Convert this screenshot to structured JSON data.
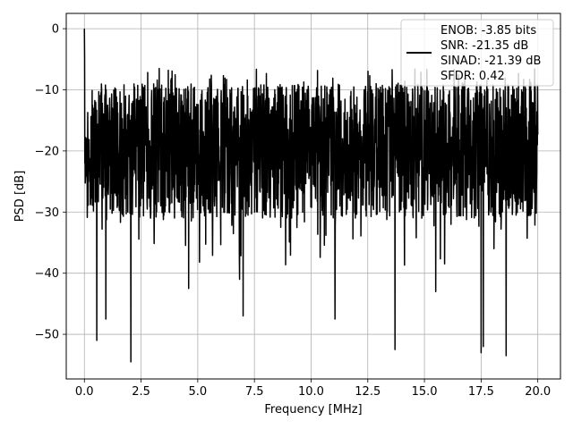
{
  "chart_data": {
    "type": "line",
    "title": "",
    "xlabel": "Frequency [MHz]",
    "ylabel": "PSD [dB]",
    "xlim": [
      -0.8,
      21.0
    ],
    "ylim": [
      -57.3,
      2.5
    ],
    "xticks": [
      0.0,
      2.5,
      5.0,
      7.5,
      10.0,
      12.5,
      15.0,
      17.5,
      20.0
    ],
    "xtick_labels": [
      "0.0",
      "2.5",
      "5.0",
      "7.5",
      "10.0",
      "12.5",
      "15.0",
      "17.5",
      "20.0"
    ],
    "yticks": [
      0,
      -10,
      -20,
      -30,
      -40,
      -50
    ],
    "ytick_labels": [
      "0",
      "−10",
      "−20",
      "−30",
      "−40",
      "−50"
    ],
    "grid": true,
    "legend_position": "top-right",
    "legend_lines": [
      "ENOB: -3.85 bits",
      "SNR: -21.35 dB",
      "SINAD: -21.39 dB",
      "SFDR: 0.42"
    ],
    "series": [
      {
        "color": "#000000",
        "x_range": [
          0.0,
          20.0
        ],
        "num_points": 2049,
        "peak": {
          "x": 0.0,
          "y": 0.0
        },
        "typical_upper_envelope": -10,
        "typical_lower_envelope": -30,
        "deep_notches": [
          {
            "x": 0.55,
            "y": -51
          },
          {
            "x": 0.95,
            "y": -47.5
          },
          {
            "x": 2.05,
            "y": -54.5
          },
          {
            "x": 4.6,
            "y": -42.5
          },
          {
            "x": 6.85,
            "y": -41
          },
          {
            "x": 7.0,
            "y": -47
          },
          {
            "x": 11.05,
            "y": -47.5
          },
          {
            "x": 13.7,
            "y": -52.5
          },
          {
            "x": 15.5,
            "y": -43
          },
          {
            "x": 17.5,
            "y": -53
          },
          {
            "x": 17.6,
            "y": -52
          },
          {
            "x": 18.6,
            "y": -53.5
          }
        ]
      }
    ]
  }
}
